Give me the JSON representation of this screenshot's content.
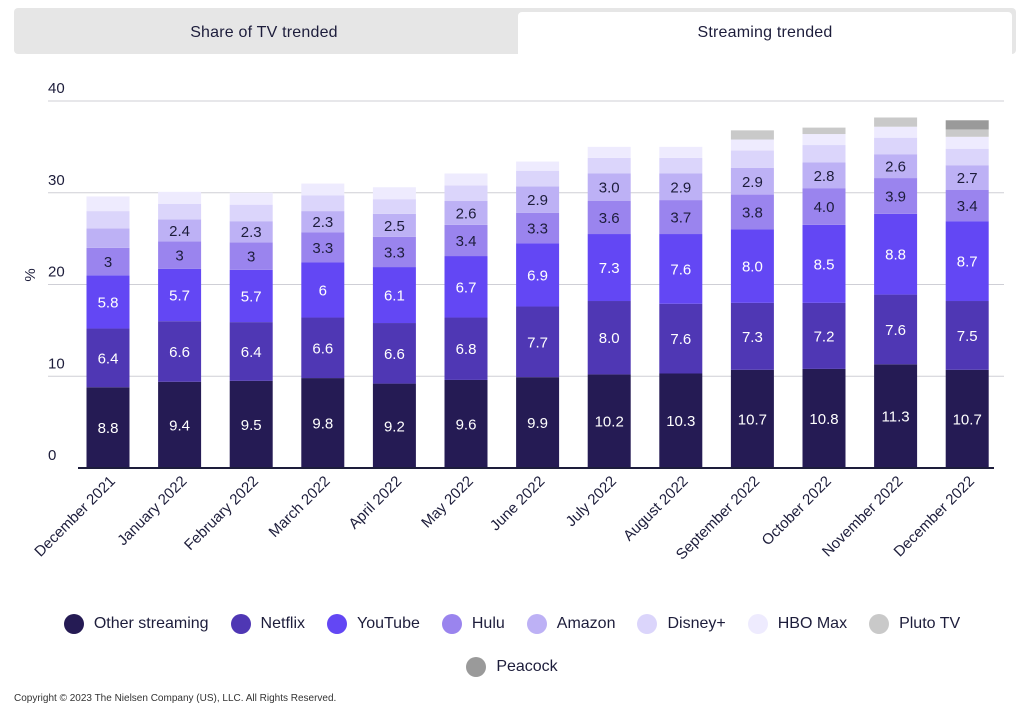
{
  "tabs": [
    {
      "label": "Share of TV trended",
      "active": false
    },
    {
      "label": "Streaming trended",
      "active": true
    }
  ],
  "chart_data": {
    "type": "bar",
    "stacked": true,
    "ylabel": "%",
    "ylim": [
      0,
      40
    ],
    "yticks": [
      0,
      10,
      20,
      30,
      40
    ],
    "categories": [
      "December 2021",
      "January 2022",
      "February 2022",
      "March 2022",
      "April 2022",
      "May 2022",
      "June 2022",
      "July 2022",
      "August 2022",
      "September 2022",
      "October 2022",
      "November 2022",
      "December 2022"
    ],
    "series": [
      {
        "name": "Other streaming",
        "color": "#251b54",
        "text_color": "#ffffff",
        "labels_shown": true,
        "values": [
          8.8,
          9.4,
          9.5,
          9.8,
          9.2,
          9.6,
          9.9,
          10.2,
          10.3,
          10.7,
          10.8,
          11.3,
          10.7
        ],
        "label_text": [
          "8.8",
          "9.4",
          "9.5",
          "9.8",
          "9.2",
          "9.6",
          "9.9",
          "10.2",
          "10.3",
          "10.7",
          "10.8",
          "11.3",
          "10.7"
        ]
      },
      {
        "name": "Netflix",
        "color": "#4f37b4",
        "text_color": "#ffffff",
        "labels_shown": true,
        "values": [
          6.4,
          6.6,
          6.4,
          6.6,
          6.6,
          6.8,
          7.7,
          8.0,
          7.6,
          7.3,
          7.2,
          7.6,
          7.5
        ],
        "label_text": [
          "6.4",
          "6.6",
          "6.4",
          "6.6",
          "6.6",
          "6.8",
          "7.7",
          "8.0",
          "7.6",
          "7.3",
          "7.2",
          "7.6",
          "7.5"
        ]
      },
      {
        "name": "YouTube",
        "color": "#6347f4",
        "text_color": "#ffffff",
        "labels_shown": true,
        "values": [
          5.8,
          5.7,
          5.7,
          6,
          6.1,
          6.7,
          6.9,
          7.3,
          7.6,
          8.0,
          8.5,
          8.8,
          8.7
        ],
        "label_text": [
          "5.8",
          "5.7",
          "5.7",
          "6",
          "6.1",
          "6.7",
          "6.9",
          "7.3",
          "7.6",
          "8.0",
          "8.5",
          "8.8",
          "8.7"
        ]
      },
      {
        "name": "Hulu",
        "color": "#9a84ee",
        "text_color": "#1d1d3b",
        "labels_shown": true,
        "values": [
          3,
          3,
          3,
          3.3,
          3.3,
          3.4,
          3.3,
          3.6,
          3.7,
          3.8,
          4.0,
          3.9,
          3.4
        ],
        "label_text": [
          "3",
          "3",
          "3",
          "3.3",
          "3.3",
          "3.4",
          "3.3",
          "3.6",
          "3.7",
          "3.8",
          "4.0",
          "3.9",
          "3.4"
        ]
      },
      {
        "name": "Amazon",
        "color": "#bdb1f5",
        "text_color": "#1d1d3b",
        "labels_shown": true,
        "values": [
          2.1,
          2.4,
          2.3,
          2.3,
          2.5,
          2.6,
          2.9,
          3.0,
          2.9,
          2.9,
          2.8,
          2.6,
          2.7
        ],
        "label_text": [
          "",
          "2.4",
          "2.3",
          "2.3",
          "2.5",
          "2.6",
          "2.9",
          "3.0",
          "2.9",
          "2.9",
          "2.8",
          "2.6",
          "2.7"
        ]
      },
      {
        "name": "Disney+",
        "color": "#dbd5fb",
        "text_color": "#1d1d3b",
        "labels_shown": false,
        "values": [
          1.9,
          1.7,
          1.8,
          1.7,
          1.6,
          1.7,
          1.7,
          1.7,
          1.7,
          1.9,
          1.9,
          1.8,
          1.8
        ],
        "label_text": []
      },
      {
        "name": "HBO Max",
        "color": "#eeebfe",
        "text_color": "#1d1d3b",
        "labels_shown": false,
        "values": [
          1.6,
          1.3,
          1.3,
          1.3,
          1.3,
          1.3,
          1.0,
          1.2,
          1.2,
          1.2,
          1.2,
          1.2,
          1.3
        ],
        "label_text": []
      },
      {
        "name": "Pluto TV",
        "color": "#c9c9c9",
        "text_color": "#1d1d3b",
        "labels_shown": false,
        "values": [
          0,
          0,
          0,
          0,
          0,
          0,
          0,
          0,
          0,
          1.0,
          0.7,
          1.0,
          0.8
        ],
        "label_text": []
      },
      {
        "name": "Peacock",
        "color": "#9a9a9a",
        "text_color": "#1d1d3b",
        "labels_shown": false,
        "values": [
          0,
          0,
          0,
          0,
          0,
          0,
          0,
          0,
          0,
          0,
          0,
          0,
          1.0
        ],
        "label_text": []
      }
    ]
  },
  "legend": {
    "row1": [
      {
        "name": "Other streaming",
        "color": "#251b54"
      },
      {
        "name": "Netflix",
        "color": "#4f37b4"
      },
      {
        "name": "YouTube",
        "color": "#6347f4"
      },
      {
        "name": "Hulu",
        "color": "#9a84ee"
      },
      {
        "name": "Amazon",
        "color": "#bdb1f5"
      },
      {
        "name": "Disney+",
        "color": "#dbd5fb"
      },
      {
        "name": "HBO Max",
        "color": "#eeebfe"
      },
      {
        "name": "Pluto TV",
        "color": "#c9c9c9"
      }
    ],
    "row2": [
      {
        "name": "Peacock",
        "color": "#9a9a9a"
      }
    ]
  },
  "copyright": "Copyright © 2023 The Nielsen Company (US), LLC. All Rights Reserved."
}
